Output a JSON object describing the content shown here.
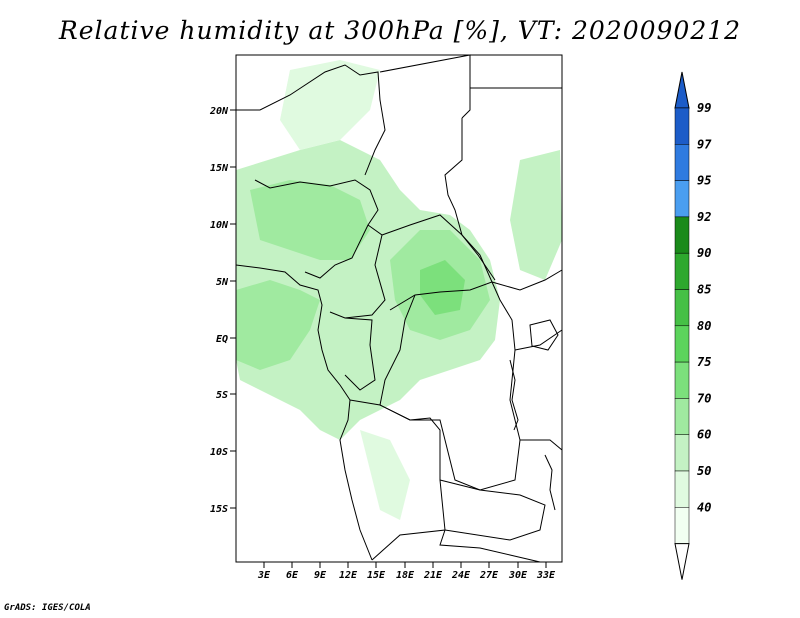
{
  "title": "Relative humidity at 300hPa [%], VT: 2020090212",
  "footer": "GrADS: IGES/COLA",
  "map": {
    "lat_labels": [
      "20N",
      "15N",
      "10N",
      "5N",
      "EQ",
      "5S",
      "10S",
      "15S"
    ],
    "lon_labels": [
      "3E",
      "6E",
      "9E",
      "12E",
      "15E",
      "18E",
      "21E",
      "24E",
      "27E",
      "30E",
      "33E"
    ]
  },
  "colorbar": {
    "labels": [
      "99",
      "97",
      "95",
      "92",
      "90",
      "85",
      "80",
      "75",
      "70",
      "60",
      "50",
      "40"
    ],
    "colors": [
      "#1c5cc8",
      "#2f7be0",
      "#4a9ef0",
      "#1a8a1a",
      "#2ea82e",
      "#46c046",
      "#5cd45c",
      "#7ce07c",
      "#a0eaa0",
      "#c4f2c4",
      "#e0fae0",
      "#f2fff2"
    ],
    "top_arrow_color": "#1c5cc8",
    "bottom_arrow_color": "#ffffff"
  }
}
